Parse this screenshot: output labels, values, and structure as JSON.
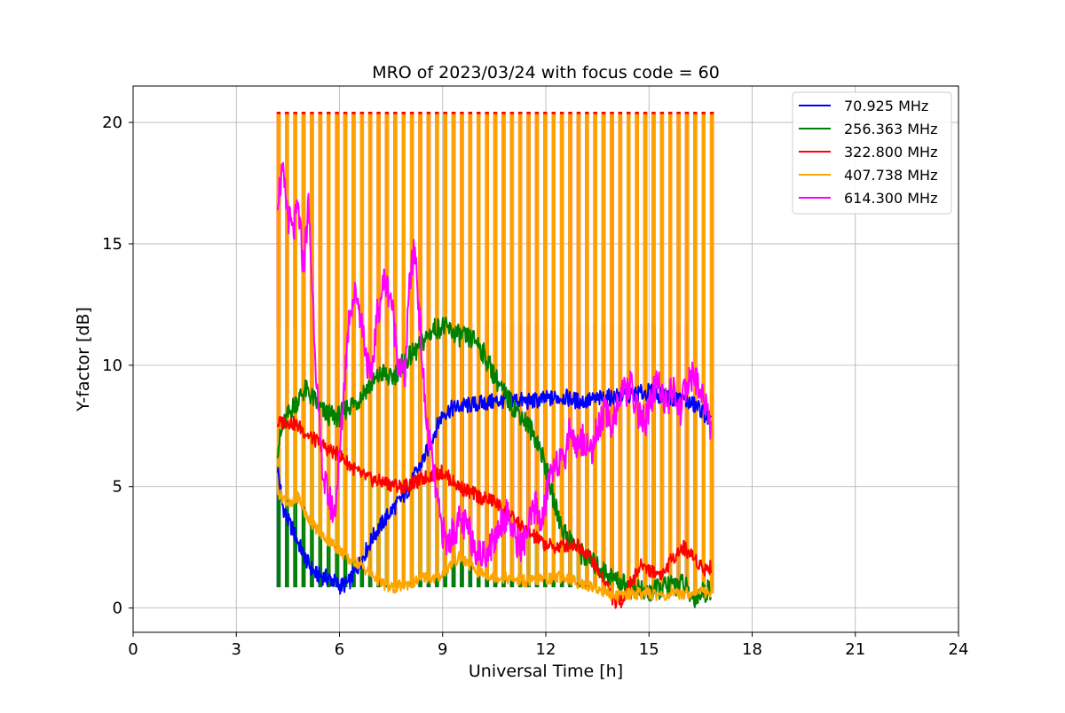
{
  "chart_data": {
    "type": "line",
    "title": "MRO of 2023/03/24 with focus code = 60",
    "xlabel": "Universal Time [h]",
    "ylabel": "Y-factor [dB]",
    "xlim": [
      0,
      24
    ],
    "ylim": [
      -1.0,
      21.5
    ],
    "x_ticks": [
      0,
      3,
      6,
      9,
      12,
      15,
      18,
      21,
      24
    ],
    "y_ticks": [
      0,
      5,
      10,
      15,
      20
    ],
    "grid": true,
    "legend_position": "top-right",
    "calibration_pulses": {
      "start_h": 4.2,
      "end_h": 16.8,
      "count": 53,
      "pulse_width_h": 0.06,
      "peak_value": 20.4,
      "series_peaks": {
        "322.800 MHz": 20.4,
        "407.738 MHz": 20.3,
        "614.300 MHz": 11.6
      },
      "pulse_base": {
        "70.925 MHz": 0.9,
        "256.363 MHz": 0.9,
        "322.800 MHz": 0.9,
        "407.738 MHz": 0.6,
        "614.300 MHz": 0.9
      }
    },
    "series": [
      {
        "name": "70.925 MHz",
        "color": "#0000ff",
        "x": [
          4.2,
          4.35,
          4.5,
          4.65,
          4.8,
          4.95,
          5.1,
          5.3,
          5.5,
          5.75,
          6.0,
          6.25,
          6.5,
          6.75,
          7.0,
          7.25,
          7.5,
          7.75,
          8.0,
          8.25,
          8.5,
          8.75,
          9.0,
          9.25,
          9.5,
          10.0,
          10.5,
          11.0,
          11.5,
          12.0,
          12.5,
          13.0,
          13.5,
          14.0,
          14.5,
          15.0,
          15.5,
          16.0,
          16.5,
          16.8
        ],
        "y": [
          5.8,
          4.2,
          3.6,
          3.2,
          2.7,
          2.2,
          1.8,
          1.4,
          1.3,
          1.2,
          0.9,
          1.0,
          1.6,
          2.3,
          3.0,
          3.5,
          4.0,
          4.4,
          4.9,
          5.6,
          6.3,
          7.2,
          8.0,
          8.2,
          8.3,
          8.4,
          8.5,
          8.6,
          8.5,
          8.6,
          8.7,
          8.5,
          8.6,
          8.7,
          8.8,
          8.9,
          8.7,
          8.6,
          8.2,
          7.6
        ]
      },
      {
        "name": "256.363 MHz",
        "color": "#008000",
        "x": [
          4.2,
          4.4,
          4.6,
          4.8,
          5.0,
          5.25,
          5.5,
          5.75,
          6.0,
          6.25,
          6.5,
          6.75,
          7.0,
          7.25,
          7.5,
          7.75,
          8.0,
          8.25,
          8.5,
          8.75,
          9.0,
          9.25,
          9.5,
          9.75,
          10.0,
          10.25,
          10.5,
          10.75,
          11.0,
          11.25,
          11.5,
          11.75,
          12.0,
          12.25,
          12.5,
          13.0,
          13.5,
          14.0,
          14.5,
          15.0,
          15.5,
          16.0,
          16.25,
          16.5,
          16.8
        ],
        "y": [
          6.6,
          7.6,
          8.2,
          8.6,
          9.0,
          8.6,
          8.1,
          7.9,
          7.9,
          8.3,
          8.5,
          9.0,
          9.3,
          9.7,
          9.4,
          9.9,
          10.3,
          10.6,
          11.1,
          11.5,
          11.6,
          11.4,
          11.2,
          11.1,
          11.0,
          10.3,
          9.6,
          8.9,
          8.4,
          8.0,
          7.5,
          6.9,
          5.8,
          4.3,
          3.2,
          2.3,
          1.7,
          1.2,
          0.8,
          0.6,
          0.9,
          1.0,
          0.4,
          0.6,
          0.8
        ]
      },
      {
        "name": "322.800 MHz",
        "color": "#ff0000",
        "x": [
          4.2,
          4.5,
          4.8,
          5.1,
          5.4,
          5.7,
          6.0,
          6.3,
          6.6,
          6.9,
          7.2,
          7.5,
          7.8,
          8.1,
          8.4,
          8.7,
          9.0,
          9.3,
          9.6,
          9.9,
          10.2,
          10.5,
          10.8,
          11.1,
          11.4,
          11.7,
          12.0,
          12.3,
          12.6,
          12.9,
          13.2,
          13.5,
          13.8,
          14.0,
          14.2,
          14.5,
          14.8,
          15.1,
          15.4,
          15.7,
          16.0,
          16.3,
          16.6,
          16.8
        ],
        "y": [
          7.6,
          7.7,
          7.5,
          7.1,
          6.8,
          6.5,
          6.3,
          5.9,
          5.5,
          5.3,
          5.2,
          5.1,
          5.0,
          5.1,
          5.3,
          5.5,
          5.6,
          5.2,
          4.9,
          4.7,
          4.5,
          4.4,
          4.0,
          3.6,
          3.2,
          2.9,
          2.6,
          2.5,
          2.6,
          2.6,
          2.3,
          1.6,
          0.9,
          0.2,
          0.3,
          1.1,
          1.8,
          1.5,
          1.4,
          2.1,
          2.5,
          2.1,
          1.6,
          1.7
        ]
      },
      {
        "name": "407.738 MHz",
        "color": "#ffa500",
        "x": [
          4.2,
          4.4,
          4.6,
          4.8,
          5.0,
          5.25,
          5.5,
          5.75,
          6.0,
          6.25,
          6.5,
          6.75,
          7.0,
          7.25,
          7.5,
          7.75,
          8.0,
          8.25,
          8.5,
          8.75,
          9.0,
          9.25,
          9.5,
          9.75,
          10.0,
          10.5,
          11.0,
          11.5,
          12.0,
          12.5,
          13.0,
          13.5,
          14.0,
          14.5,
          15.0,
          15.5,
          16.0,
          16.5,
          16.8
        ],
        "y": [
          4.8,
          4.5,
          4.2,
          4.6,
          3.9,
          3.4,
          3.0,
          2.7,
          2.4,
          2.0,
          1.9,
          1.6,
          1.3,
          1.0,
          0.8,
          0.9,
          1.0,
          1.1,
          1.3,
          1.2,
          1.4,
          1.8,
          2.1,
          1.8,
          1.5,
          1.3,
          1.2,
          1.1,
          1.2,
          1.3,
          1.0,
          0.8,
          0.5,
          0.6,
          0.6,
          0.5,
          0.6,
          0.7,
          0.6
        ]
      },
      {
        "name": "614.300 MHz",
        "color": "#ff00ff",
        "x": [
          4.2,
          4.35,
          4.5,
          4.65,
          4.8,
          4.95,
          5.1,
          5.25,
          5.4,
          5.55,
          5.7,
          5.85,
          6.0,
          6.15,
          6.3,
          6.5,
          6.7,
          6.9,
          7.1,
          7.3,
          7.5,
          7.7,
          7.9,
          8.05,
          8.2,
          8.35,
          8.5,
          8.7,
          8.9,
          9.1,
          9.3,
          9.5,
          9.7,
          9.9,
          10.1,
          10.3,
          10.5,
          10.7,
          10.9,
          11.1,
          11.3,
          11.5,
          11.7,
          11.9,
          12.1,
          12.3,
          12.5,
          12.7,
          12.9,
          13.1,
          13.3,
          13.5,
          13.7,
          13.9,
          14.1,
          14.3,
          14.5,
          14.7,
          14.9,
          15.1,
          15.3,
          15.5,
          15.7,
          15.9,
          16.1,
          16.3,
          16.5,
          16.7,
          16.8
        ],
        "y": [
          17.0,
          17.8,
          16.2,
          15.4,
          16.5,
          14.0,
          16.6,
          12.0,
          7.5,
          5.2,
          4.5,
          3.8,
          6.2,
          9.5,
          12.4,
          13.0,
          11.3,
          9.2,
          12.1,
          13.5,
          12.8,
          10.2,
          9.4,
          13.6,
          14.8,
          11.5,
          8.0,
          6.0,
          3.8,
          2.6,
          3.1,
          3.6,
          3.3,
          2.7,
          2.1,
          2.4,
          2.8,
          3.6,
          3.9,
          2.9,
          2.5,
          3.3,
          4.2,
          3.5,
          5.4,
          6.2,
          5.8,
          7.5,
          6.6,
          7.0,
          6.4,
          7.3,
          8.1,
          7.6,
          8.4,
          8.9,
          9.1,
          8.0,
          7.6,
          8.7,
          9.4,
          8.3,
          9.0,
          8.1,
          9.2,
          9.6,
          8.8,
          8.5,
          7.1
        ]
      }
    ]
  }
}
